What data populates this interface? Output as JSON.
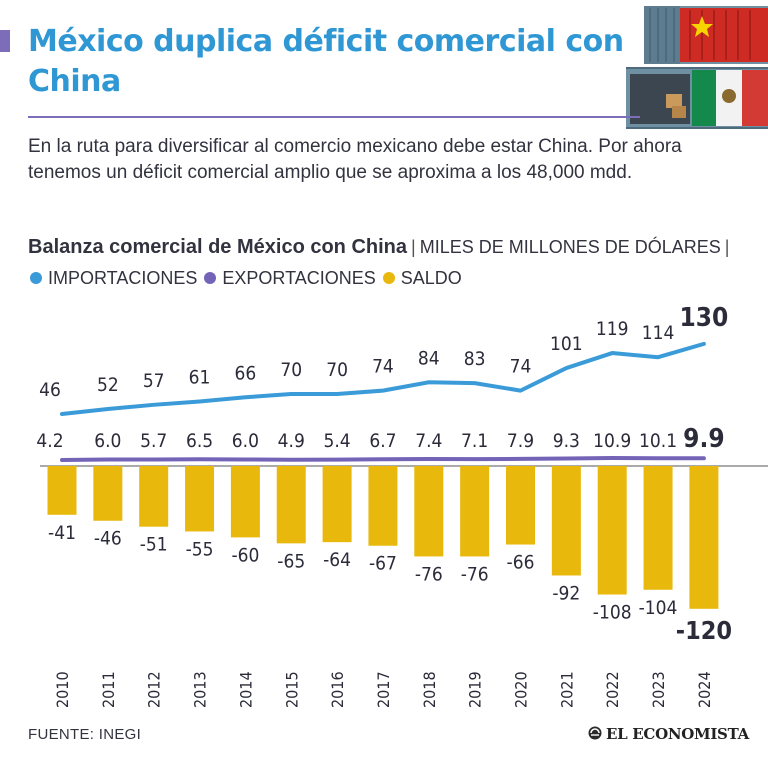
{
  "title": "México duplica déficit comercial con China",
  "intro": "En la ruta para diversificar al comercio mexicano debe estar China. Por ahora tenemos un déficit comercial amplio que se aproxima a los 48,000 mdd.",
  "heading": {
    "chart_title": "Balanza comercial de México con China",
    "unit": "MILES DE MILLONES DE DÓLARES",
    "legend": [
      {
        "label": "IMPORTACIONES",
        "color": "#3a9bd8"
      },
      {
        "label": "EXPORTACIONES",
        "color": "#7464b8"
      },
      {
        "label": "SALDO",
        "color": "#e9b80c"
      }
    ]
  },
  "source": "FUENTE: INEGI",
  "brand": "EL ECONOMISTA",
  "chart_data": {
    "type": "line",
    "categories": [
      "2010",
      "2011",
      "2012",
      "2013",
      "2014",
      "2015",
      "2016",
      "2017",
      "2018",
      "2019",
      "2020",
      "2021",
      "2022",
      "2023",
      "2024"
    ],
    "series": [
      {
        "name": "IMPORTACIONES",
        "type": "line",
        "color": "#3a9bd8",
        "values": [
          46,
          52,
          57,
          61,
          66,
          70,
          70,
          74,
          84,
          83,
          74,
          101,
          119,
          114,
          130
        ],
        "labels": [
          "46",
          "52",
          "57",
          "61",
          "66",
          "70",
          "70",
          "74",
          "84",
          "83",
          "74",
          "101",
          "119",
          "114",
          "130"
        ]
      },
      {
        "name": "EXPORTACIONES",
        "type": "line",
        "color": "#7464b8",
        "values": [
          4.2,
          6.0,
          5.7,
          6.5,
          6.0,
          4.9,
          5.4,
          6.7,
          7.4,
          7.1,
          7.9,
          9.3,
          10.9,
          10.1,
          9.9
        ],
        "labels": [
          "4.2",
          "6.0",
          "5.7",
          "6.5",
          "6.0",
          "4.9",
          "5.4",
          "6.7",
          "7.4",
          "7.1",
          "7.9",
          "9.3",
          "10.9",
          "10.1",
          "9.9"
        ]
      },
      {
        "name": "SALDO",
        "type": "bar",
        "color": "#e9b80c",
        "values": [
          -41,
          -46,
          -51,
          -55,
          -60,
          -65,
          -64,
          -67,
          -76,
          -76,
          -66,
          -92,
          -108,
          -104,
          -120
        ],
        "labels": [
          "-41",
          "-46",
          "-51",
          "-55",
          "-60",
          "-65",
          "-64",
          "-67",
          "-76",
          "-76",
          "-66",
          "-92",
          "-108",
          "-104",
          "-120"
        ]
      }
    ],
    "legend_position": "top",
    "grid": false
  }
}
